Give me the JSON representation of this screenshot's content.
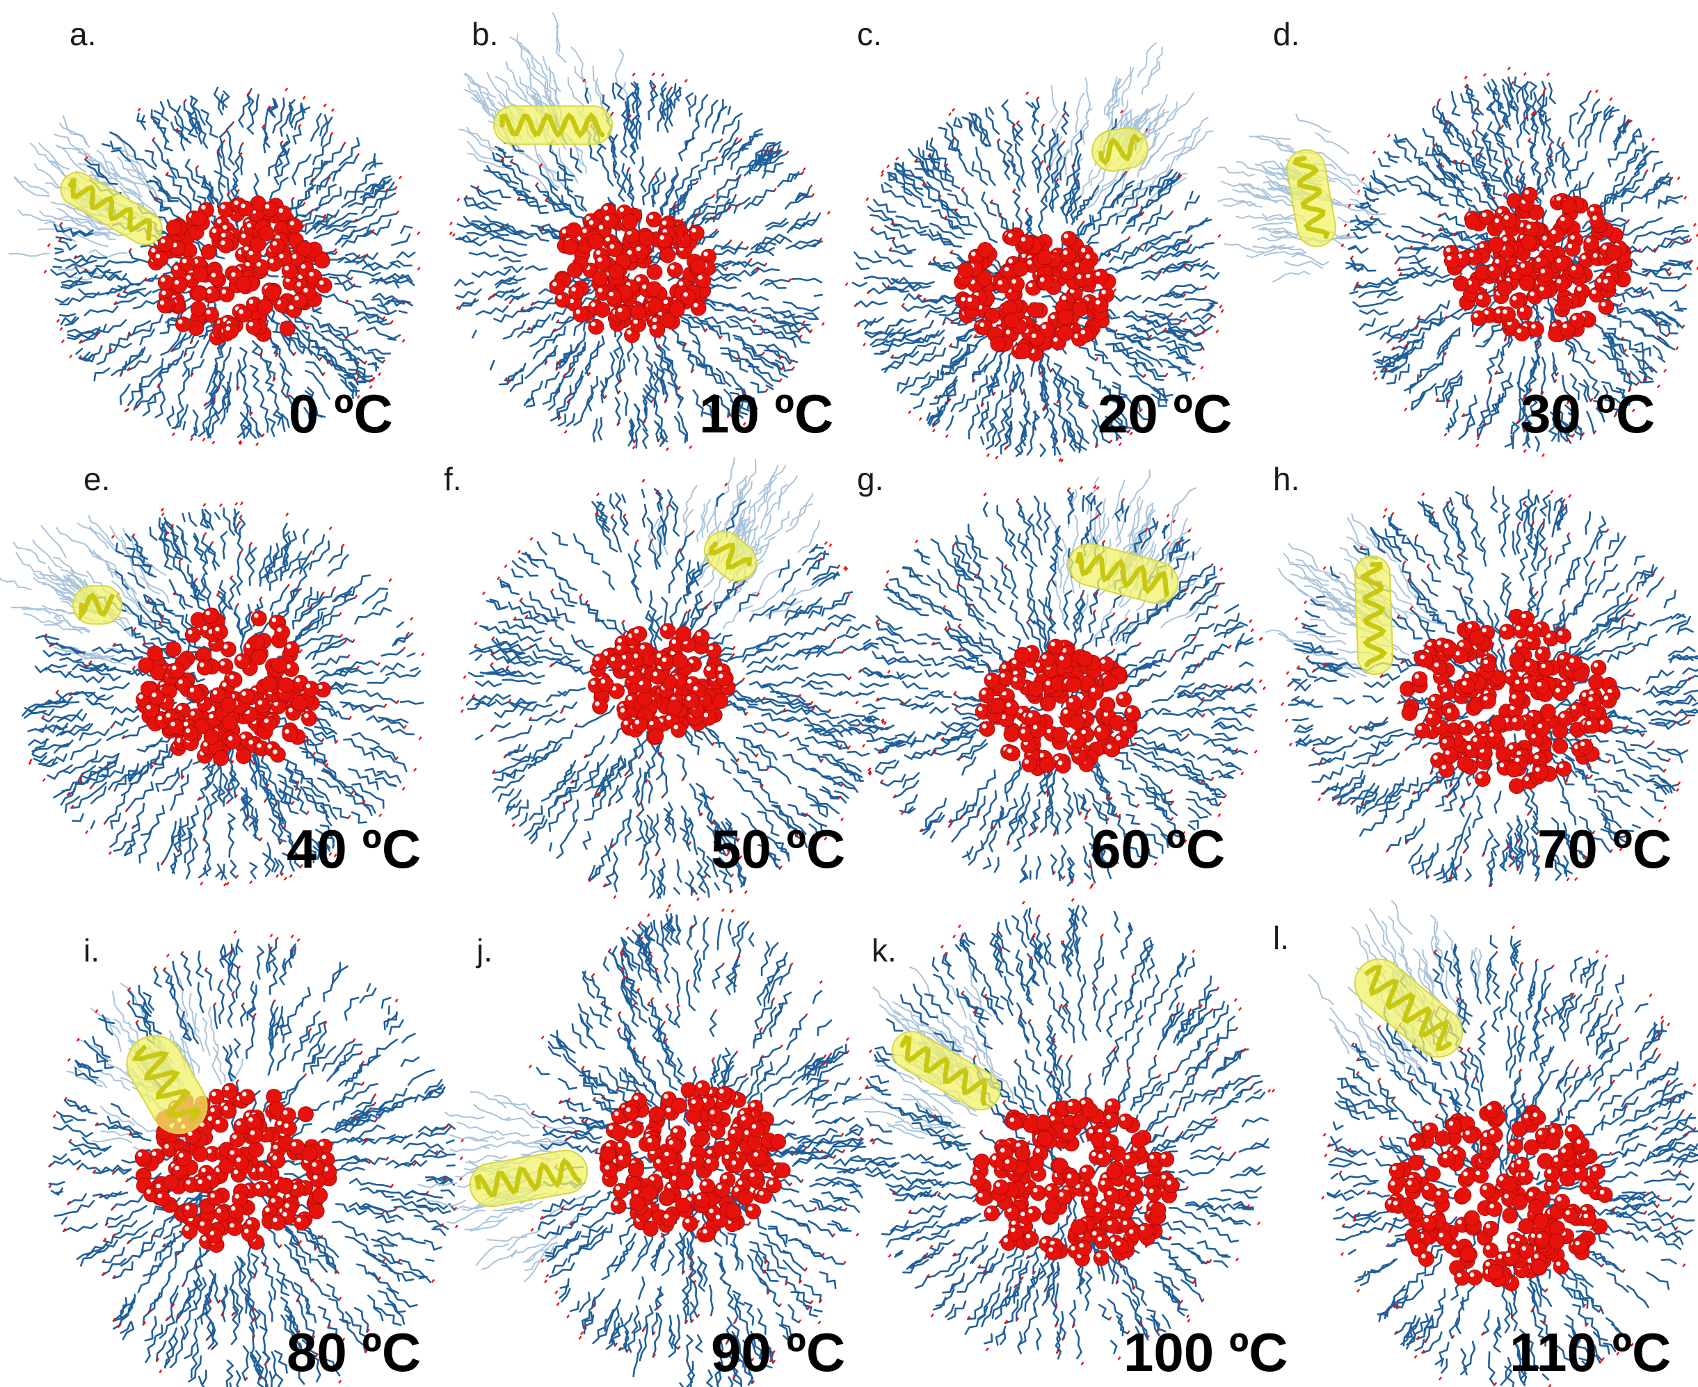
{
  "figure": {
    "panels": [
      {
        "letter": "a.",
        "temperature": "0 ºC"
      },
      {
        "letter": "b.",
        "temperature": "10 ºC"
      },
      {
        "letter": "c.",
        "temperature": "20 ºC"
      },
      {
        "letter": "d.",
        "temperature": "30 ºC"
      },
      {
        "letter": "e.",
        "temperature": "40 ºC"
      },
      {
        "letter": "f.",
        "temperature": "50 ºC"
      },
      {
        "letter": "g.",
        "temperature": "60 ºC"
      },
      {
        "letter": "h.",
        "temperature": "70 ºC"
      },
      {
        "letter": "i.",
        "temperature": "80 ºC"
      },
      {
        "letter": "j.",
        "temperature": "90 ºC"
      },
      {
        "letter": "k.",
        "temperature": "100 ºC"
      },
      {
        "letter": "l.",
        "temperature": "110 ºC"
      }
    ],
    "colors": {
      "surfactant_tail": "#1f5f9a",
      "surfactant_light": "#a9c3db",
      "water_oxygen": "#e8120c",
      "water_hydrogen": "#ffffff",
      "peptide_surface": "#f2f26a",
      "peptide_helix": "#c8c810"
    }
  }
}
